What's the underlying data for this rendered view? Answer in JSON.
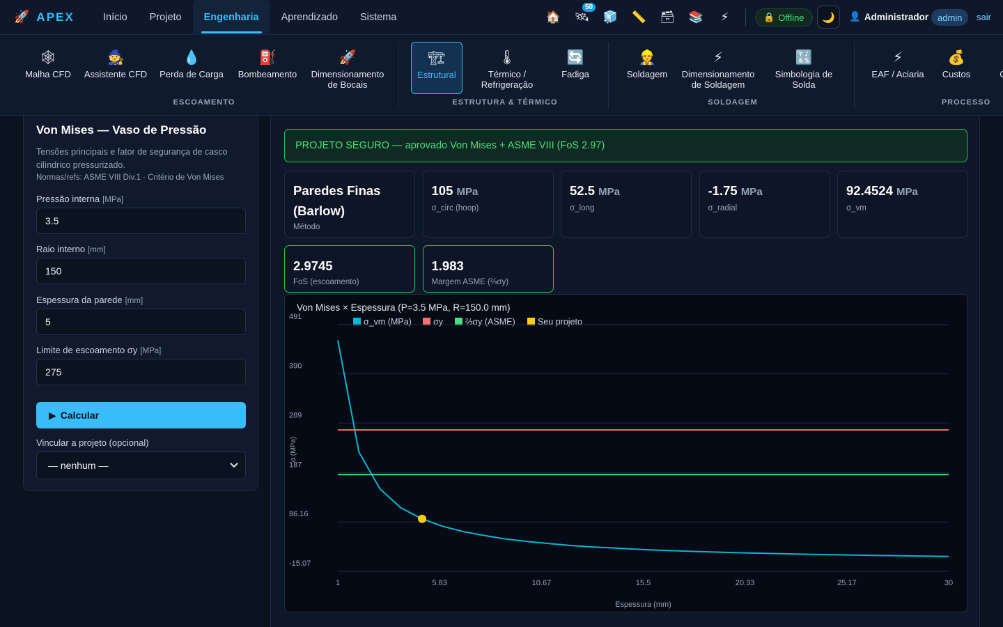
{
  "app": {
    "brand": "APEX",
    "brand_icon": "rocket-icon"
  },
  "nav": {
    "tabs": [
      {
        "label": "Início"
      },
      {
        "label": "Projeto"
      },
      {
        "label": "Engenharia",
        "active": true
      },
      {
        "label": "Aprendizado"
      },
      {
        "label": "Sistema"
      }
    ]
  },
  "toolbar_icons": [
    {
      "name": "home-icon",
      "glyph": "🏠"
    },
    {
      "name": "satellite-icon",
      "glyph": "🛰",
      "badge": "50"
    },
    {
      "name": "cube-icon",
      "glyph": "🧊"
    },
    {
      "name": "ruler-icon",
      "glyph": "📏"
    },
    {
      "name": "archive-icon",
      "glyph": "🗃"
    },
    {
      "name": "layers-icon",
      "glyph": "📚"
    },
    {
      "name": "lightning-icon",
      "glyph": "⚡"
    }
  ],
  "status": {
    "offline": "Offline",
    "user": "Administrador",
    "role": "admin",
    "logout": "sair"
  },
  "ribbon": {
    "groups": [
      {
        "label": "ESCOAMENTO",
        "items": [
          {
            "label": "Malha CFD",
            "glyph": "🕸",
            "icon": "mesh-icon"
          },
          {
            "label": "Assistente CFD",
            "glyph": "🧙",
            "icon": "wizard-icon"
          },
          {
            "label": "Perda de Carga",
            "glyph": "💧",
            "icon": "droplet-icon"
          },
          {
            "label": "Bombeamento",
            "glyph": "⛽",
            "icon": "pump-icon"
          },
          {
            "label": "Dimensionamento de Bocais",
            "glyph": "🚀",
            "icon": "nozzle-icon"
          }
        ]
      },
      {
        "label": "ESTRUTURA & TÉRMICO",
        "items": [
          {
            "label": "Estrutural",
            "glyph": "🏗",
            "icon": "structure-icon",
            "active": true
          },
          {
            "label": "Térmico / Refrigeração",
            "glyph": "🌡",
            "icon": "thermometer-icon"
          },
          {
            "label": "Fadiga",
            "glyph": "🔄",
            "icon": "cycle-icon"
          }
        ]
      },
      {
        "label": "SOLDAGEM",
        "items": [
          {
            "label": "Soldagem",
            "glyph": "👷",
            "icon": "welder-icon"
          },
          {
            "label": "Dimensionamento de Soldagem",
            "glyph": "⚡",
            "icon": "weld-size-icon"
          },
          {
            "label": "Simbologia de Solda",
            "glyph": "🔣",
            "icon": "symbols-icon"
          }
        ]
      },
      {
        "label": "PROCESSO",
        "items": [
          {
            "label": "EAF / Aciaria",
            "glyph": "⚡",
            "icon": "furnace-icon"
          },
          {
            "label": "Custos",
            "glyph": "💰",
            "icon": "money-bag-icon"
          },
          {
            "label": "C",
            "glyph": "",
            "icon": "truncated-icon"
          }
        ]
      }
    ]
  },
  "form": {
    "title": "Von Mises — Vaso de Pressão",
    "description": "Tensões principais e fator de segurança de casco cilíndrico pressurizado.",
    "refs": "Normas/refs: ASME VIII Div.1 · Critério de Von Mises",
    "fields": [
      {
        "label": "Pressão interna",
        "unit": "[MPa]",
        "value": "3.5"
      },
      {
        "label": "Raio interno",
        "unit": "[mm]",
        "value": "150"
      },
      {
        "label": "Espessura da parede",
        "unit": "[mm]",
        "value": "5"
      },
      {
        "label": "Limite de escoamento σy",
        "unit": "[MPa]",
        "value": "275"
      }
    ],
    "calculate": "Calcular",
    "link_label": "Vincular a projeto (opcional)",
    "link_value": "— nenhum —"
  },
  "result": {
    "banner": "PROJETO SEGURO — aprovado Von Mises + ASME VIII (FoS 2.97)",
    "cards": [
      {
        "value": "Paredes Finas (Barlow)",
        "unit": "",
        "label": "Método"
      },
      {
        "value": "105",
        "unit": "MPa",
        "label": "σ_circ (hoop)"
      },
      {
        "value": "52.5",
        "unit": "MPa",
        "label": "σ_long"
      },
      {
        "value": "-1.75",
        "unit": "MPa",
        "label": "σ_radial"
      },
      {
        "value": "92.4524",
        "unit": "MPa",
        "label": "σ_vm"
      }
    ],
    "ok_cards": [
      {
        "value": "2.9745",
        "label": "FoS (escoamento)"
      },
      {
        "value": "1.983",
        "label": "Margem ASME (⅔σy)"
      }
    ]
  },
  "chart_data": {
    "type": "line",
    "title": "Von Mises × Espessura (P=3.5 MPa, R=150.0 mm)",
    "xlabel": "Espessura (mm)",
    "ylabel": "σ (MPa)",
    "xlim": [
      1,
      30
    ],
    "ylim": [
      -15.07,
      491
    ],
    "x_ticks": [
      "1",
      "5.83",
      "10.67",
      "15.5",
      "20.33",
      "25.17",
      "30"
    ],
    "y_ticks": [
      "491",
      "390",
      "289",
      "187",
      "86.16",
      "-15.07"
    ],
    "legend": [
      "σ_vm (MPa)",
      "σy",
      "⅔σy (ASME)",
      "Seu projeto"
    ],
    "colors": {
      "vm": "#06b6d4",
      "sy": "#f87171",
      "asme": "#4ade80",
      "proj": "#facc15"
    },
    "series": [
      {
        "name": "σ_vm (MPa)",
        "x": [
          1,
          2,
          3,
          4,
          5,
          6,
          7,
          8,
          9,
          10,
          11,
          12,
          13,
          14,
          15,
          16,
          18,
          20,
          22,
          24,
          26,
          28,
          30
        ],
        "values": [
          459,
          230,
          154,
          115,
          92.45,
          77,
          66,
          58,
          51,
          46,
          42,
          38,
          35,
          33,
          30.5,
          28.5,
          25.5,
          23,
          21,
          19.2,
          17.8,
          16.5,
          15.4
        ]
      },
      {
        "name": "σy",
        "x": [
          1,
          30
        ],
        "values": [
          275,
          275
        ]
      },
      {
        "name": "⅔σy (ASME)",
        "x": [
          1,
          30
        ],
        "values": [
          183.3,
          183.3
        ]
      }
    ],
    "design_point": {
      "x": 5,
      "y": 92.45
    }
  }
}
